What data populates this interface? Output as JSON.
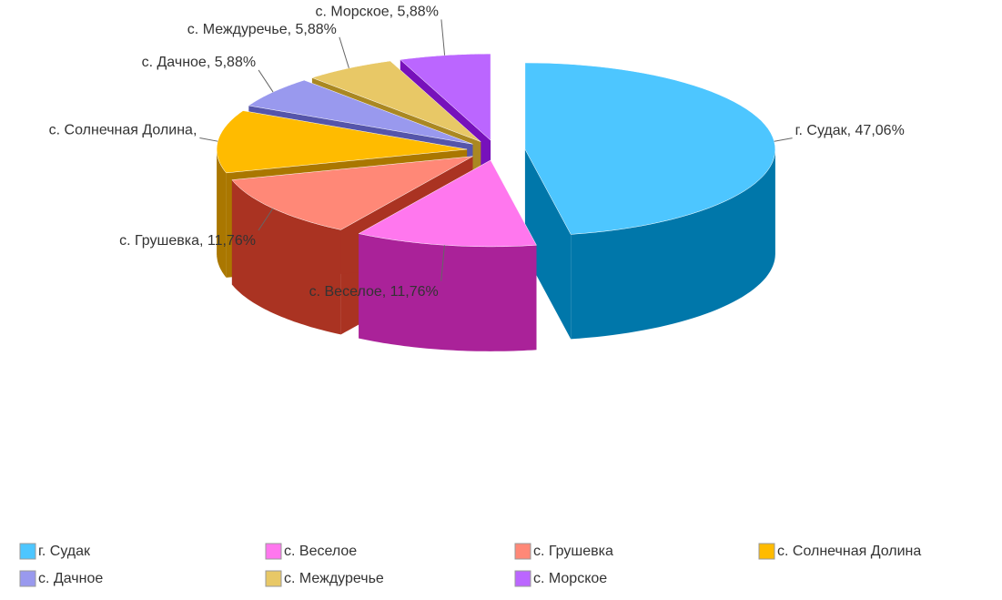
{
  "chart_data": {
    "type": "pie3d",
    "categories": [
      "г. Судак",
      "с. Веселое",
      "с. Грушевка",
      "с. Солнечная Долина",
      "с. Дачное",
      "с. Междуречье",
      "с. Морское"
    ],
    "values": [
      47.06,
      11.76,
      11.76,
      11.76,
      5.88,
      5.88,
      5.88
    ],
    "value_labels": [
      "г. Судак, 47,06%",
      "с. Веселое, 11,76%",
      "с. Грушевка, 11,76%",
      "с. Солнечная Долина,",
      "с. Дачное, 5,88%",
      "с. Междуречье, 5,88%",
      "с. Морское, 5,88%"
    ],
    "colors": [
      "#4dc6ff",
      "#ff77ee",
      "#ff8877",
      "#ffbb00",
      "#9999ee",
      "#e8c866",
      "#bb66ff"
    ],
    "side_colors": [
      "#0077aa",
      "#aa2299",
      "#aa3322",
      "#aa7700",
      "#5555aa",
      "#aa8822",
      "#7711bb"
    ],
    "legend": "bottom"
  }
}
